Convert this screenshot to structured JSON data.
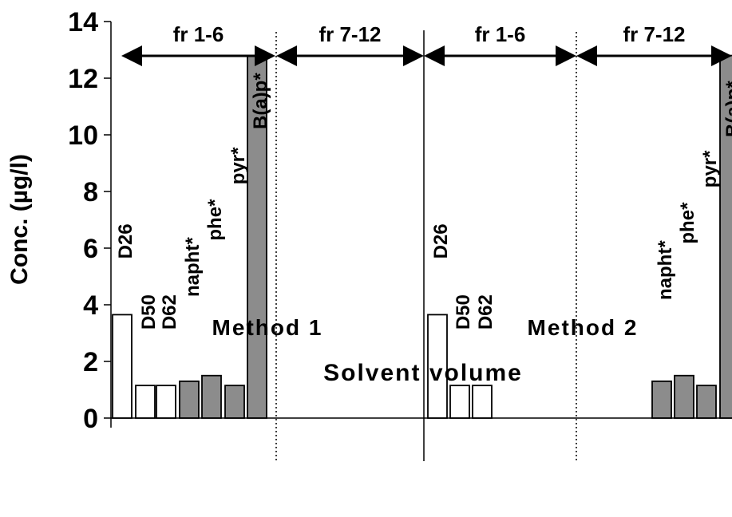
{
  "chart_data": {
    "type": "bar",
    "ylabel": "Conc. (µg/l)",
    "xlabel": "Solvent volume",
    "ylim": [
      0,
      14
    ],
    "yticks": [
      0,
      2,
      4,
      6,
      8,
      10,
      12,
      14
    ],
    "groups": [
      "Method 1",
      "Method 2"
    ],
    "fraction_labels": [
      "fr 1-6",
      "fr 7-12",
      "fr 1-6",
      "fr 7-12"
    ],
    "colors": {
      "deuterated": "#ffffff",
      "pah": "#8c8c8c",
      "edge": "#000000"
    },
    "series": [
      {
        "group": "Method 1",
        "bars": [
          {
            "label": "D26",
            "value": 3.65,
            "kind": "deuterated"
          },
          {
            "label": "D50",
            "value": 1.15,
            "kind": "deuterated"
          },
          {
            "label": "D62",
            "value": 1.15,
            "kind": "deuterated"
          },
          {
            "label": "napht*",
            "value": 1.3,
            "kind": "pah"
          },
          {
            "label": "phe*",
            "value": 1.5,
            "kind": "pah"
          },
          {
            "label": "pyr*",
            "value": 1.15,
            "kind": "pah"
          },
          {
            "label": "B(a)p*",
            "value": 12.8,
            "kind": "pah"
          }
        ]
      },
      {
        "group": "Method 2",
        "bars": [
          {
            "label": "D26",
            "value": 3.65,
            "kind": "deuterated"
          },
          {
            "label": "D50",
            "value": 1.15,
            "kind": "deuterated"
          },
          {
            "label": "D62",
            "value": 1.15,
            "kind": "deuterated"
          },
          {
            "label": "napht*",
            "value": 1.3,
            "kind": "pah"
          },
          {
            "label": "phe*",
            "value": 1.5,
            "kind": "pah"
          },
          {
            "label": "pyr*",
            "value": 1.15,
            "kind": "pah"
          },
          {
            "label": "B(a)p*",
            "value": 12.8,
            "kind": "pah"
          }
        ]
      }
    ]
  }
}
